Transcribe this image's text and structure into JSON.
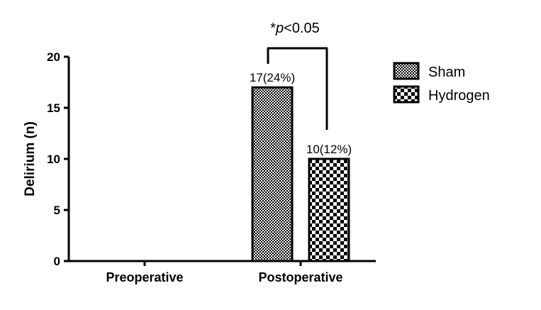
{
  "chart_data": {
    "type": "bar",
    "ylabel": "Delirium (n)",
    "xlabel": "",
    "ylim": [
      0,
      20
    ],
    "yticks": [
      0,
      5,
      10,
      15,
      20
    ],
    "categories": [
      "Preoperative",
      "Postoperative"
    ],
    "series": [
      {
        "name": "Sham",
        "pattern": "fine-checker",
        "values": [
          0,
          17
        ],
        "labels": [
          "",
          "17(24%)"
        ]
      },
      {
        "name": "Hydrogen",
        "pattern": "coarse-checker",
        "values": [
          0,
          10
        ],
        "labels": [
          "",
          "10(12%)"
        ]
      }
    ],
    "annotation": {
      "prefix": "*",
      "italic": "p",
      "suffix": "<0.05"
    },
    "legend_position": "right",
    "grid": false,
    "colors": {
      "ink": "#000000",
      "background": "#ffffff"
    }
  }
}
